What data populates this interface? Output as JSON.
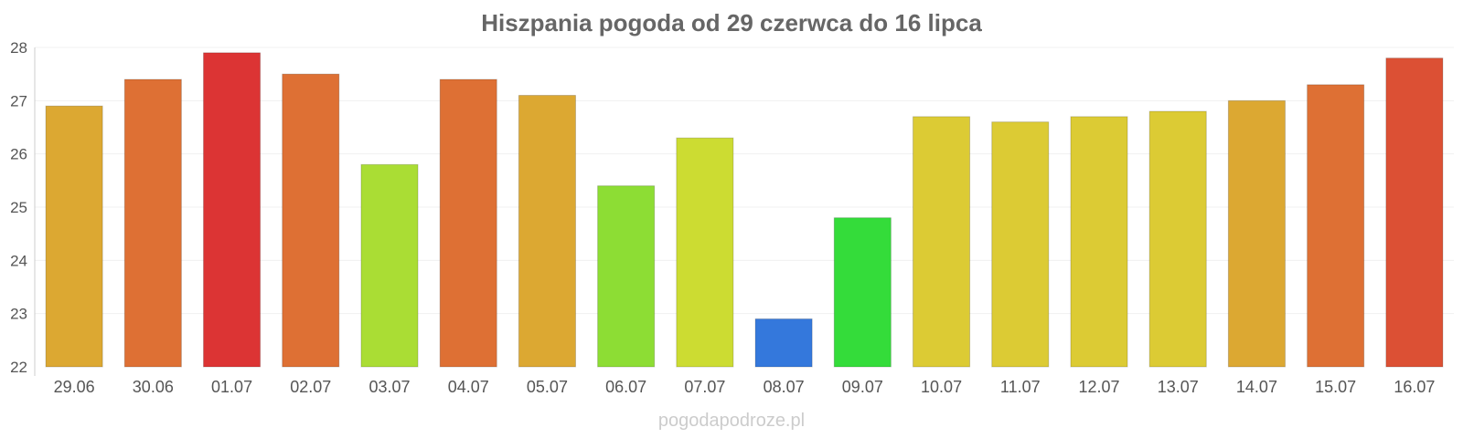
{
  "chart_data": {
    "type": "bar",
    "title": "Hiszpania pogoda od 29 czerwca do 16 lipca",
    "xlabel": "",
    "ylabel": "",
    "ylim": [
      22,
      28
    ],
    "yticks": [
      "22",
      "23",
      "24",
      "25",
      "26",
      "27",
      "28"
    ],
    "grid": true,
    "categories": [
      "29.06",
      "30.06",
      "01.07",
      "02.07",
      "03.07",
      "04.07",
      "05.07",
      "06.07",
      "07.07",
      "08.07",
      "09.07",
      "10.07",
      "11.07",
      "12.07",
      "13.07",
      "14.07",
      "15.07",
      "16.07"
    ],
    "values": [
      26.9,
      27.4,
      27.9,
      27.5,
      25.8,
      27.4,
      27.1,
      25.4,
      26.3,
      22.9,
      24.8,
      26.7,
      26.6,
      26.7,
      26.8,
      27.0,
      27.3,
      27.8
    ],
    "colors": [
      "#dca832",
      "#de7034",
      "#dc3434",
      "#de7034",
      "#aadd34",
      "#de7034",
      "#dca832",
      "#8ddd34",
      "#ccdc32",
      "#3478dc",
      "#34dc3a",
      "#dccb34",
      "#dccb34",
      "#dccb34",
      "#dccb34",
      "#dca832",
      "#de7034",
      "#dc5034"
    ]
  },
  "watermark": "pogodapodroze.pl"
}
